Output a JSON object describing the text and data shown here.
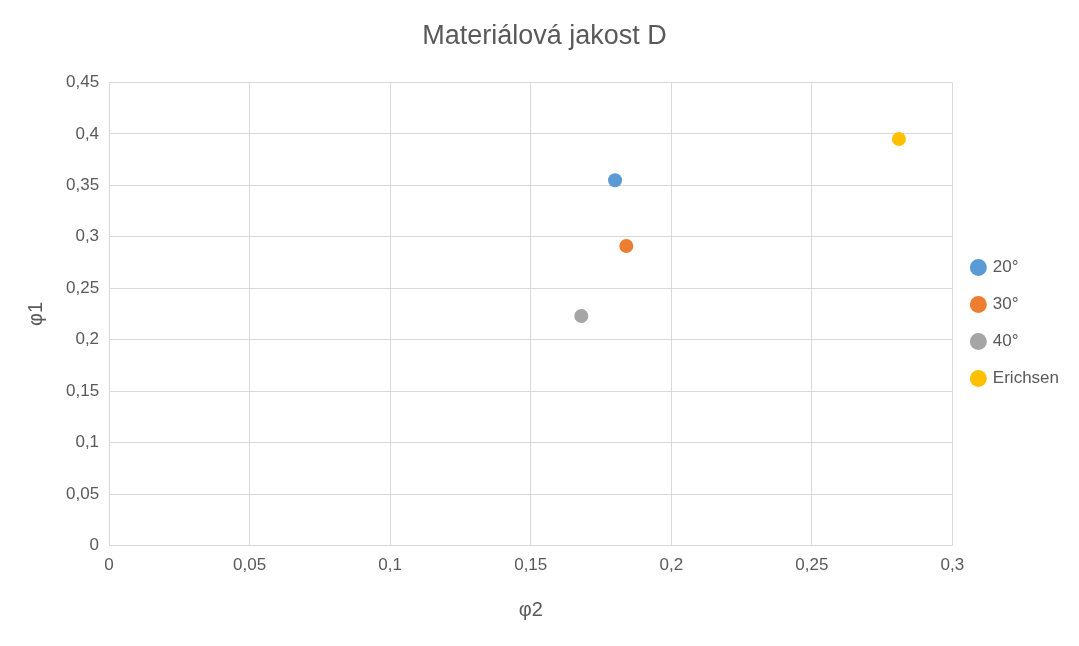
{
  "chart_data": {
    "type": "scatter",
    "title": "Materiálová jakost D",
    "xlabel": "φ2",
    "ylabel": "φ1",
    "series": [
      {
        "name": "20°",
        "color": "#5b9bd5",
        "x": [
          0.18
        ],
        "values": [
          0.355
        ]
      },
      {
        "name": "30°",
        "color": "#ed7d31",
        "x": [
          0.184
        ],
        "values": [
          0.291
        ]
      },
      {
        "name": "40°",
        "color": "#a5a5a5",
        "x": [
          0.168
        ],
        "values": [
          0.223
        ]
      },
      {
        "name": "Erichsen",
        "color": "#ffc000",
        "x": [
          0.281
        ],
        "values": [
          0.395
        ]
      }
    ],
    "xlim": [
      0,
      0.3
    ],
    "xticks": [
      {
        "value": 0,
        "label": "0"
      },
      {
        "value": 0.05,
        "label": "0,05"
      },
      {
        "value": 0.1,
        "label": "0,1"
      },
      {
        "value": 0.15,
        "label": "0,15"
      },
      {
        "value": 0.2,
        "label": "0,2"
      },
      {
        "value": 0.25,
        "label": "0,25"
      },
      {
        "value": 0.3,
        "label": "0,3"
      }
    ],
    "ylim": [
      0,
      0.45
    ],
    "yticks": [
      {
        "value": 0,
        "label": "0"
      },
      {
        "value": 0.05,
        "label": "0,05"
      },
      {
        "value": 0.1,
        "label": "0,1"
      },
      {
        "value": 0.15,
        "label": "0,15"
      },
      {
        "value": 0.2,
        "label": "0,2"
      },
      {
        "value": 0.25,
        "label": "0,25"
      },
      {
        "value": 0.3,
        "label": "0,3"
      },
      {
        "value": 0.35,
        "label": "0,35"
      },
      {
        "value": 0.4,
        "label": "0,4"
      },
      {
        "value": 0.45,
        "label": "0,45"
      }
    ],
    "grid": true,
    "legend": "right",
    "marker": "circle"
  }
}
